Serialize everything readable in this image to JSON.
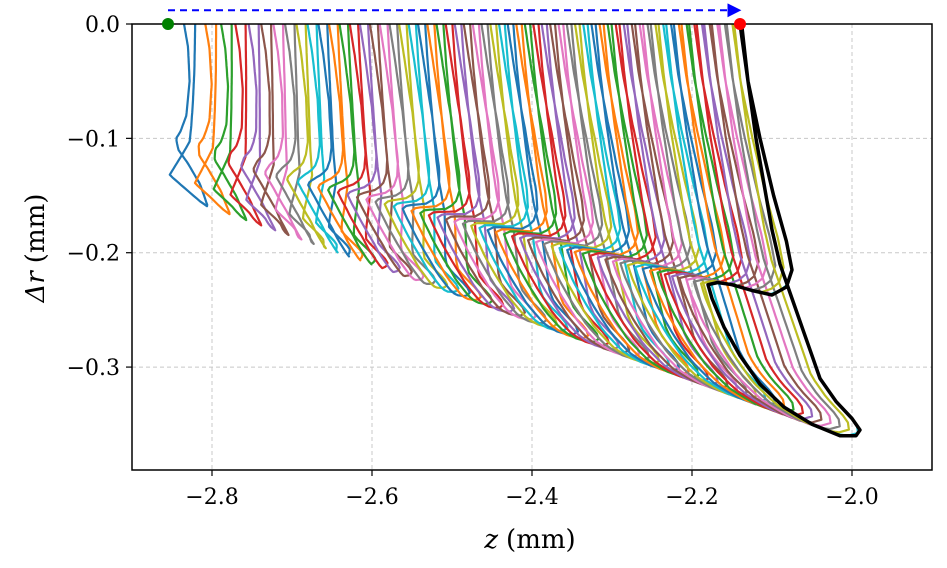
{
  "chart_data": {
    "type": "line",
    "xlabel_var": "z",
    "xlabel_unit": "(mm)",
    "ylabel_var": "Δr",
    "ylabel_unit": "(mm)",
    "xlim": [
      -2.9,
      -1.9
    ],
    "ylim": [
      -0.39,
      0.0
    ],
    "xticks": [
      -2.8,
      -2.6,
      -2.4,
      -2.2,
      -2.0
    ],
    "xtick_labels": [
      "−2.8",
      "−2.6",
      "−2.4",
      "−2.2",
      "−2.0"
    ],
    "yticks": [
      0.0,
      -0.1,
      -0.2,
      -0.3
    ],
    "ytick_labels": [
      "0.0",
      "−0.1",
      "−0.2",
      "−0.3"
    ],
    "grid": true,
    "series_count": 60,
    "series_colors": [
      "#1f77b4",
      "#ff7f0e",
      "#2ca02c",
      "#d62728",
      "#9467bd",
      "#8c564b",
      "#e377c2",
      "#7f7f7f",
      "#bcbd22",
      "#17becf"
    ],
    "first_curve": {
      "color": "#1f77b4",
      "points": [
        [
          -2.835,
          0.0
        ],
        [
          -2.83,
          -0.02
        ],
        [
          -2.828,
          -0.05
        ],
        [
          -2.832,
          -0.08
        ],
        [
          -2.84,
          -0.095
        ],
        [
          -2.845,
          -0.1
        ],
        [
          -2.842,
          -0.11
        ],
        [
          -2.83,
          -0.122
        ],
        [
          -2.815,
          -0.14
        ],
        [
          -2.805,
          -0.16
        ],
        [
          -2.815,
          -0.155
        ],
        [
          -2.835,
          -0.143
        ],
        [
          -2.853,
          -0.132
        ],
        [
          -2.838,
          -0.115
        ],
        [
          -2.828,
          -0.103
        ],
        [
          -2.826,
          -0.09
        ],
        [
          -2.824,
          -0.07
        ],
        [
          -2.822,
          -0.04
        ],
        [
          -2.821,
          0.0
        ]
      ]
    },
    "envelope_curve": {
      "color": "#000000",
      "points": [
        [
          -2.14,
          0.0
        ],
        [
          -2.13,
          -0.05
        ],
        [
          -2.115,
          -0.1
        ],
        [
          -2.098,
          -0.15
        ],
        [
          -2.082,
          -0.19
        ],
        [
          -2.075,
          -0.215
        ],
        [
          -2.082,
          -0.23
        ],
        [
          -2.1,
          -0.237
        ],
        [
          -2.125,
          -0.233
        ],
        [
          -2.15,
          -0.228
        ],
        [
          -2.168,
          -0.226
        ],
        [
          -2.18,
          -0.228
        ],
        [
          -2.175,
          -0.24
        ],
        [
          -2.16,
          -0.265
        ],
        [
          -2.14,
          -0.29
        ],
        [
          -2.115,
          -0.315
        ],
        [
          -2.085,
          -0.335
        ],
        [
          -2.05,
          -0.35
        ],
        [
          -2.015,
          -0.36
        ],
        [
          -1.995,
          -0.36
        ],
        [
          -1.99,
          -0.355
        ],
        [
          -2.0,
          -0.345
        ],
        [
          -2.02,
          -0.33
        ],
        [
          -2.04,
          -0.31
        ],
        [
          -2.05,
          -0.29
        ],
        [
          -2.06,
          -0.27
        ],
        [
          -2.075,
          -0.24
        ],
        [
          -2.09,
          -0.21
        ],
        [
          -2.1,
          -0.18
        ],
        [
          -2.11,
          -0.14
        ],
        [
          -2.12,
          -0.1
        ],
        [
          -2.13,
          -0.05
        ],
        [
          -2.138,
          0.0
        ]
      ]
    },
    "start_point": {
      "x": -2.855,
      "y": 0.0,
      "color": "#008000"
    },
    "end_point": {
      "x": -2.14,
      "y": 0.0,
      "color": "#ff0000"
    },
    "arrow": {
      "x_from": -2.855,
      "x_to": -2.14,
      "y": 0.012,
      "color": "#0000ff",
      "style": "dashed"
    }
  }
}
